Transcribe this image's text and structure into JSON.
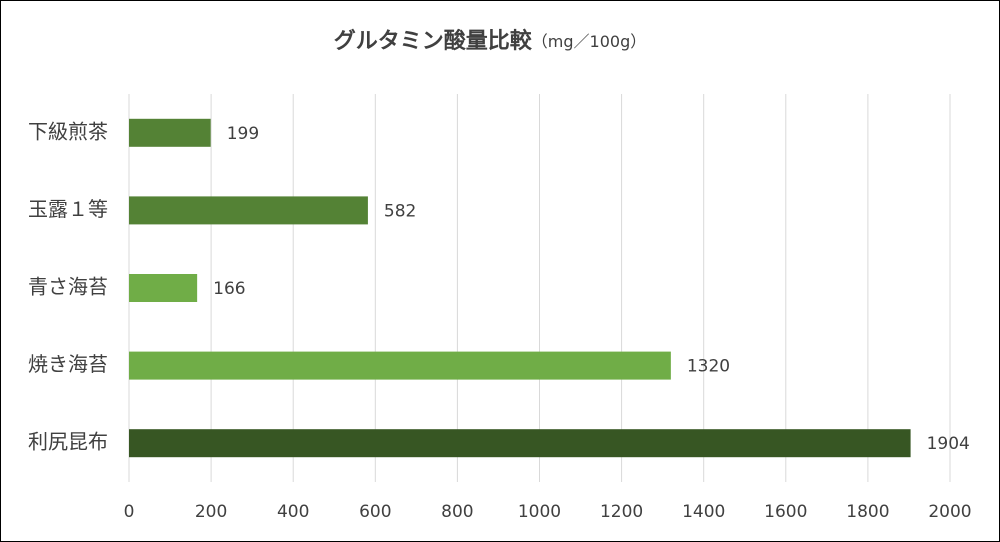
{
  "chart_data": {
    "type": "hbar",
    "title": "グルタミン酸量比較",
    "unit": "（mg／100g）",
    "categories": [
      "下級煎茶",
      "玉露１等",
      "青さ海苔",
      "焼き海苔",
      "利尻昆布"
    ],
    "values": [
      199,
      582,
      166,
      1320,
      1904
    ],
    "colors": [
      "#548235",
      "#548235",
      "#70ad47",
      "#70ad47",
      "#375623"
    ],
    "xlim": [
      0,
      2000
    ],
    "xticks": [
      0,
      200,
      400,
      600,
      800,
      1000,
      1200,
      1400,
      1600,
      1800,
      2000
    ],
    "grid": true
  }
}
